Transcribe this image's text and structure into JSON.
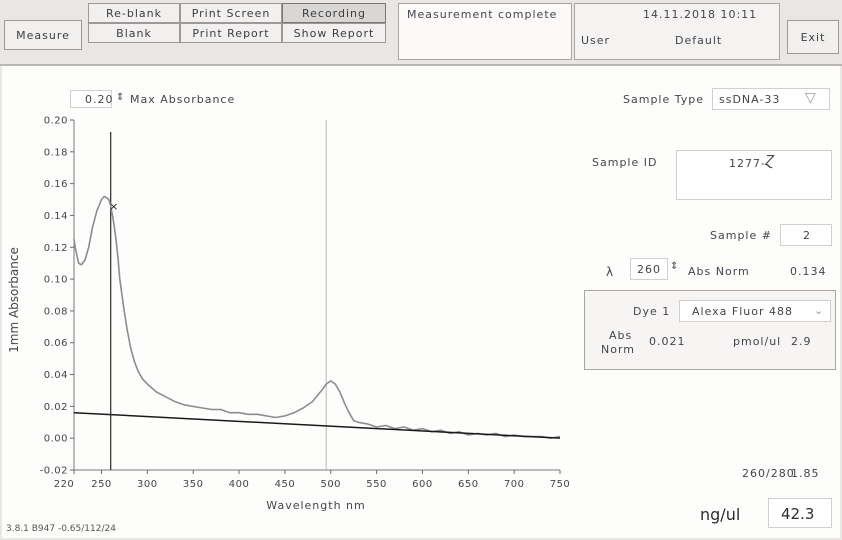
{
  "toolbar": {
    "measure_label": "Measure",
    "reblank_label": "Re-blank",
    "blank_label": "Blank",
    "print_screen_label": "Print Screen",
    "print_report_label": "Print Report",
    "recording_label": "Recording",
    "show_report_label": "Show Report",
    "exit_label": "Exit"
  },
  "status": {
    "message": "Measurement complete",
    "datetime": "14.11.2018 10:11",
    "user_label": "User",
    "user_value": "Default"
  },
  "max_absorbance": {
    "value": "0.20",
    "label": "Max Absorbance"
  },
  "sample_type": {
    "label": "Sample Type",
    "value": "ssDNA-33"
  },
  "sample_id": {
    "label": "Sample ID",
    "value": "1277-"
  },
  "sample_number": {
    "label": "Sample #",
    "value": "2"
  },
  "lambda": {
    "symbol": "λ",
    "value": "260",
    "abs_norm_label": "Abs Norm",
    "abs_norm_value": "0.134"
  },
  "dye": {
    "label": "Dye 1",
    "value": "Alexa Fluor 488",
    "abs_norm_label_1": "Abs",
    "abs_norm_label_2": "Norm",
    "abs_norm_value": "0.021",
    "pmol_label": "pmol/ul",
    "pmol_value": "2.9"
  },
  "ratio": {
    "label": "260/280",
    "value": "1.85"
  },
  "concentration": {
    "label": "ng/ul",
    "value": "42.3"
  },
  "version": "3.8.1 B947 -0.65/112/24",
  "icons": {
    "spinner": "up-down-spinner-icon",
    "dropdown": "chevron-down-icon",
    "cursor": "cursor-crosshair-icon"
  },
  "colors": {
    "spectrum": "#8e8c90",
    "baseline": "#1a1a1a",
    "cursor": "#3a3a3a"
  },
  "chart_data": {
    "type": "line",
    "xlabel": "Wavelength nm",
    "ylabel": "1mm Absorbance",
    "xlim": [
      220,
      750
    ],
    "ylim": [
      -0.02,
      0.2
    ],
    "xticks": [
      "220",
      "250",
      "300",
      "350",
      "400",
      "450",
      "500",
      "550",
      "600",
      "650",
      "700",
      "750"
    ],
    "yticks": [
      "0.20",
      "0.18",
      "0.16",
      "0.14",
      "0.12",
      "0.10",
      "0.08",
      "0.06",
      "0.04",
      "0.02",
      "0.00",
      "-0.02"
    ],
    "cursor_x": 260,
    "marker_x": 495,
    "series": [
      {
        "x": [
          220,
          222,
          225,
          228,
          232,
          236,
          240,
          245,
          250,
          253,
          256,
          258,
          260,
          262,
          264,
          266,
          268,
          270,
          274,
          278,
          282,
          286,
          290,
          295,
          300,
          310,
          320,
          330,
          340,
          350,
          360,
          370,
          380,
          390,
          400,
          410,
          420,
          430,
          440,
          450,
          460,
          470,
          480,
          490,
          495,
          500,
          505,
          510,
          515,
          520,
          525,
          530,
          540,
          550,
          560,
          570,
          580,
          590,
          600,
          610,
          620,
          630,
          640,
          650,
          660,
          670,
          680,
          690,
          700,
          710,
          720,
          730,
          740,
          750
        ],
        "y": [
          0.125,
          0.118,
          0.11,
          0.109,
          0.112,
          0.12,
          0.132,
          0.143,
          0.15,
          0.152,
          0.151,
          0.15,
          0.146,
          0.14,
          0.133,
          0.124,
          0.113,
          0.1,
          0.083,
          0.068,
          0.056,
          0.048,
          0.042,
          0.037,
          0.034,
          0.029,
          0.026,
          0.023,
          0.021,
          0.02,
          0.019,
          0.018,
          0.018,
          0.016,
          0.016,
          0.015,
          0.015,
          0.014,
          0.013,
          0.014,
          0.016,
          0.019,
          0.023,
          0.03,
          0.034,
          0.036,
          0.034,
          0.029,
          0.022,
          0.016,
          0.011,
          0.01,
          0.009,
          0.007,
          0.008,
          0.006,
          0.007,
          0.005,
          0.006,
          0.004,
          0.005,
          0.003,
          0.004,
          0.002,
          0.003,
          0.002,
          0.003,
          0.001,
          0.002,
          0.001,
          0.001,
          0.001,
          0.0,
          0.001
        ]
      },
      {
        "x": [
          220,
          750
        ],
        "y": [
          0.016,
          0.0
        ]
      }
    ]
  }
}
